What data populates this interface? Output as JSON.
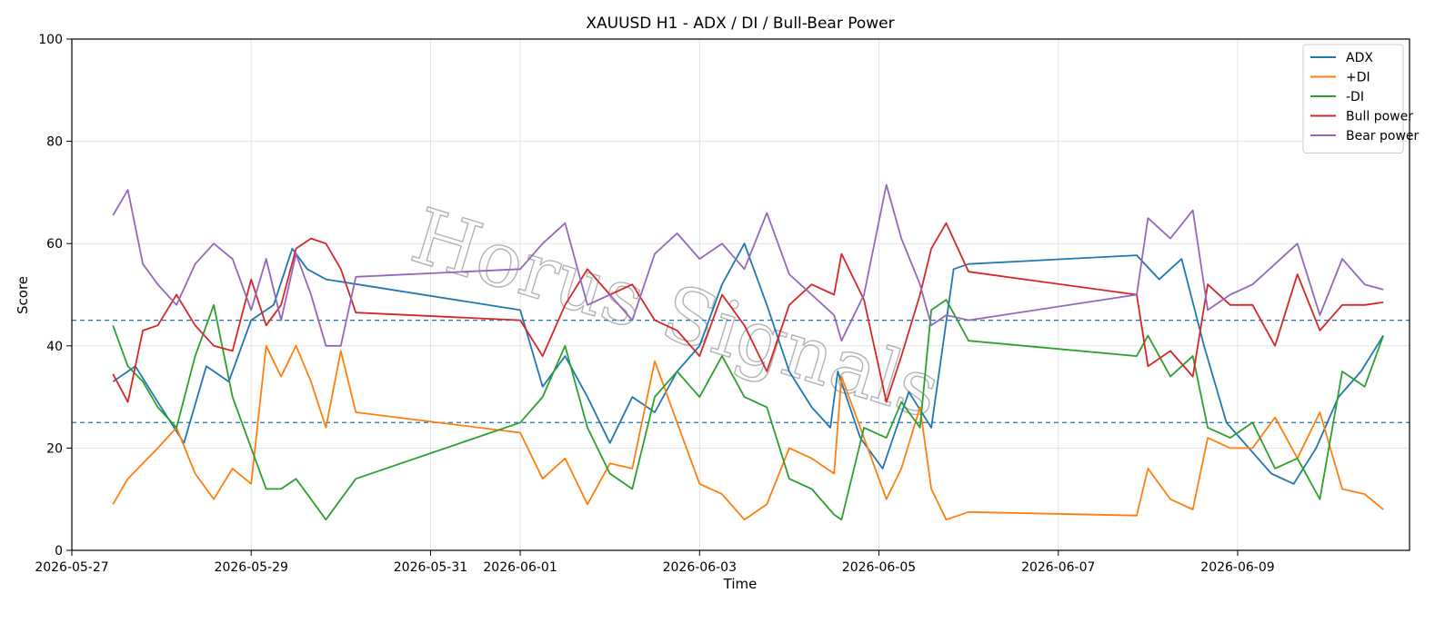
{
  "chart_data": {
    "type": "line",
    "title": "XAUUSD H1 - ADX / DI / Bull-Bear Power",
    "xlabel": "Time",
    "ylabel": "Score",
    "ylim": [
      0,
      100
    ],
    "yticks": [
      0,
      20,
      40,
      60,
      80,
      100
    ],
    "xlim": [
      "2026-05-27T00:00",
      "2026-06-10T22:00"
    ],
    "xticks": [
      "2026-05-27",
      "2026-05-29",
      "2026-05-31",
      "2026-06-01",
      "2026-06-03",
      "2026-06-05",
      "2026-06-07",
      "2026-06-09"
    ],
    "grid": true,
    "legend_position": "top-right",
    "reference_lines": [
      {
        "y": 45,
        "color": "#1f77b4",
        "style": "dashed"
      },
      {
        "y": 25,
        "color": "#1f77b4",
        "style": "dashed"
      }
    ],
    "watermark": "Horus Signals",
    "series": [
      {
        "name": "ADX",
        "color": "#1f77b4",
        "points": [
          [
            "2026-05-27T11:00",
            33
          ],
          [
            "2026-05-27T17:00",
            36
          ],
          [
            "2026-05-27T23:00",
            29
          ],
          [
            "2026-05-28T06:00",
            21
          ],
          [
            "2026-05-28T12:00",
            36
          ],
          [
            "2026-05-28T18:00",
            33
          ],
          [
            "2026-05-29T00:00",
            45
          ],
          [
            "2026-05-29T06:00",
            48
          ],
          [
            "2026-05-29T11:00",
            59
          ],
          [
            "2026-05-29T15:00",
            55
          ],
          [
            "2026-05-29T20:00",
            53
          ],
          [
            "2026-06-01T00:00",
            47
          ],
          [
            "2026-06-01T06:00",
            32
          ],
          [
            "2026-06-01T12:00",
            38
          ],
          [
            "2026-06-01T18:00",
            30
          ],
          [
            "2026-06-02T00:00",
            21
          ],
          [
            "2026-06-02T06:00",
            30
          ],
          [
            "2026-06-02T12:00",
            27
          ],
          [
            "2026-06-02T18:00",
            35
          ],
          [
            "2026-06-03T00:00",
            40
          ],
          [
            "2026-06-03T06:00",
            52
          ],
          [
            "2026-06-03T12:00",
            60
          ],
          [
            "2026-06-03T18:00",
            48
          ],
          [
            "2026-06-04T00:00",
            35
          ],
          [
            "2026-06-04T06:00",
            28
          ],
          [
            "2026-06-04T11:00",
            24
          ],
          [
            "2026-06-04T13:00",
            35
          ],
          [
            "2026-06-04T19:00",
            22
          ],
          [
            "2026-06-05T01:00",
            16
          ],
          [
            "2026-06-05T08:00",
            31
          ],
          [
            "2026-06-05T14:00",
            24
          ],
          [
            "2026-06-05T20:00",
            55
          ],
          [
            "2026-06-06T00:00",
            56
          ],
          [
            "2026-06-07T21:00",
            57.7
          ],
          [
            "2026-06-08T03:00",
            53
          ],
          [
            "2026-06-08T09:00",
            57
          ],
          [
            "2026-06-08T15:00",
            40
          ],
          [
            "2026-06-08T21:00",
            25
          ],
          [
            "2026-06-09T03:00",
            20
          ],
          [
            "2026-06-09T09:00",
            15
          ],
          [
            "2026-06-09T15:00",
            13
          ],
          [
            "2026-06-09T21:00",
            20
          ],
          [
            "2026-06-10T03:00",
            30
          ],
          [
            "2026-06-10T09:00",
            35
          ],
          [
            "2026-06-10T15:00",
            42
          ]
        ]
      },
      {
        "name": "+DI",
        "color": "#ff7f0e",
        "points": [
          [
            "2026-05-27T11:00",
            9
          ],
          [
            "2026-05-27T15:00",
            14
          ],
          [
            "2026-05-27T19:00",
            17
          ],
          [
            "2026-05-27T23:00",
            20
          ],
          [
            "2026-05-28T04:00",
            24
          ],
          [
            "2026-05-28T09:00",
            15
          ],
          [
            "2026-05-28T14:00",
            10
          ],
          [
            "2026-05-28T19:00",
            16
          ],
          [
            "2026-05-29T00:00",
            13
          ],
          [
            "2026-05-29T04:00",
            40
          ],
          [
            "2026-05-29T08:00",
            34
          ],
          [
            "2026-05-29T12:00",
            40
          ],
          [
            "2026-05-29T16:00",
            33
          ],
          [
            "2026-05-29T20:00",
            24
          ],
          [
            "2026-05-30T00:00",
            39
          ],
          [
            "2026-05-30T04:00",
            27
          ],
          [
            "2026-06-01T00:00",
            23
          ],
          [
            "2026-06-01T06:00",
            14
          ],
          [
            "2026-06-01T12:00",
            18
          ],
          [
            "2026-06-01T18:00",
            9
          ],
          [
            "2026-06-02T00:00",
            17
          ],
          [
            "2026-06-02T06:00",
            16
          ],
          [
            "2026-06-02T12:00",
            37
          ],
          [
            "2026-06-02T18:00",
            25
          ],
          [
            "2026-06-03T00:00",
            13
          ],
          [
            "2026-06-03T06:00",
            11
          ],
          [
            "2026-06-03T12:00",
            6
          ],
          [
            "2026-06-03T18:00",
            9
          ],
          [
            "2026-06-04T00:00",
            20
          ],
          [
            "2026-06-04T06:00",
            18
          ],
          [
            "2026-06-04T12:00",
            15
          ],
          [
            "2026-06-04T14:00",
            34
          ],
          [
            "2026-06-04T20:00",
            22
          ],
          [
            "2026-06-05T02:00",
            10
          ],
          [
            "2026-06-05T06:00",
            16
          ],
          [
            "2026-06-05T11:00",
            28
          ],
          [
            "2026-06-05T14:00",
            12
          ],
          [
            "2026-06-05T18:00",
            6
          ],
          [
            "2026-06-06T00:00",
            7.5
          ],
          [
            "2026-06-07T21:00",
            6.8
          ],
          [
            "2026-06-08T00:00",
            16
          ],
          [
            "2026-06-08T06:00",
            10
          ],
          [
            "2026-06-08T12:00",
            8
          ],
          [
            "2026-06-08T16:00",
            22
          ],
          [
            "2026-06-08T22:00",
            20
          ],
          [
            "2026-06-09T04:00",
            20
          ],
          [
            "2026-06-09T10:00",
            26
          ],
          [
            "2026-06-09T16:00",
            18
          ],
          [
            "2026-06-09T22:00",
            27
          ],
          [
            "2026-06-10T04:00",
            12
          ],
          [
            "2026-06-10T10:00",
            11
          ],
          [
            "2026-06-10T15:00",
            8
          ]
        ]
      },
      {
        "name": "-DI",
        "color": "#2ca02c",
        "points": [
          [
            "2026-05-27T11:00",
            44
          ],
          [
            "2026-05-27T15:00",
            36
          ],
          [
            "2026-05-27T19:00",
            33
          ],
          [
            "2026-05-27T23:00",
            28
          ],
          [
            "2026-05-28T04:00",
            24
          ],
          [
            "2026-05-28T09:00",
            38
          ],
          [
            "2026-05-28T14:00",
            48
          ],
          [
            "2026-05-28T19:00",
            30
          ],
          [
            "2026-05-29T00:00",
            20
          ],
          [
            "2026-05-29T04:00",
            12
          ],
          [
            "2026-05-29T08:00",
            12
          ],
          [
            "2026-05-29T12:00",
            14
          ],
          [
            "2026-05-29T16:00",
            10
          ],
          [
            "2026-05-29T20:00",
            6
          ],
          [
            "2026-05-30T00:00",
            10
          ],
          [
            "2026-05-30T04:00",
            14
          ],
          [
            "2026-06-01T00:00",
            25
          ],
          [
            "2026-06-01T06:00",
            30
          ],
          [
            "2026-06-01T12:00",
            40
          ],
          [
            "2026-06-01T18:00",
            24
          ],
          [
            "2026-06-02T00:00",
            15
          ],
          [
            "2026-06-02T06:00",
            12
          ],
          [
            "2026-06-02T12:00",
            30
          ],
          [
            "2026-06-02T18:00",
            35
          ],
          [
            "2026-06-03T00:00",
            30
          ],
          [
            "2026-06-03T06:00",
            38
          ],
          [
            "2026-06-03T12:00",
            30
          ],
          [
            "2026-06-03T18:00",
            28
          ],
          [
            "2026-06-04T00:00",
            14
          ],
          [
            "2026-06-04T06:00",
            12
          ],
          [
            "2026-06-04T12:00",
            7
          ],
          [
            "2026-06-04T14:00",
            6
          ],
          [
            "2026-06-04T20:00",
            24
          ],
          [
            "2026-06-05T02:00",
            22
          ],
          [
            "2026-06-05T06:00",
            29
          ],
          [
            "2026-06-05T11:00",
            24
          ],
          [
            "2026-06-05T14:00",
            47
          ],
          [
            "2026-06-05T18:00",
            49
          ],
          [
            "2026-06-06T00:00",
            41
          ],
          [
            "2026-06-07T21:00",
            38
          ],
          [
            "2026-06-08T00:00",
            42
          ],
          [
            "2026-06-08T06:00",
            34
          ],
          [
            "2026-06-08T12:00",
            38
          ],
          [
            "2026-06-08T16:00",
            24
          ],
          [
            "2026-06-08T22:00",
            22
          ],
          [
            "2026-06-09T04:00",
            25
          ],
          [
            "2026-06-09T10:00",
            16
          ],
          [
            "2026-06-09T16:00",
            18
          ],
          [
            "2026-06-09T22:00",
            10
          ],
          [
            "2026-06-10T04:00",
            35
          ],
          [
            "2026-06-10T10:00",
            32
          ],
          [
            "2026-06-10T15:00",
            42
          ]
        ]
      },
      {
        "name": "Bull power",
        "color": "#d62728",
        "points": [
          [
            "2026-05-27T11:00",
            34.5
          ],
          [
            "2026-05-27T15:00",
            29
          ],
          [
            "2026-05-27T19:00",
            43
          ],
          [
            "2026-05-27T23:00",
            44
          ],
          [
            "2026-05-28T04:00",
            50
          ],
          [
            "2026-05-28T09:00",
            44
          ],
          [
            "2026-05-28T14:00",
            40
          ],
          [
            "2026-05-28T19:00",
            39
          ],
          [
            "2026-05-29T00:00",
            53
          ],
          [
            "2026-05-29T04:00",
            44
          ],
          [
            "2026-05-29T08:00",
            48
          ],
          [
            "2026-05-29T12:00",
            59
          ],
          [
            "2026-05-29T16:00",
            61
          ],
          [
            "2026-05-29T20:00",
            60
          ],
          [
            "2026-05-30T00:00",
            55
          ],
          [
            "2026-05-30T04:00",
            46.5
          ],
          [
            "2026-06-01T00:00",
            45
          ],
          [
            "2026-06-01T06:00",
            38
          ],
          [
            "2026-06-01T12:00",
            48
          ],
          [
            "2026-06-01T18:00",
            55
          ],
          [
            "2026-06-02T00:00",
            50
          ],
          [
            "2026-06-02T06:00",
            52
          ],
          [
            "2026-06-02T12:00",
            45
          ],
          [
            "2026-06-02T18:00",
            43
          ],
          [
            "2026-06-03T00:00",
            38
          ],
          [
            "2026-06-03T06:00",
            50
          ],
          [
            "2026-06-03T12:00",
            44
          ],
          [
            "2026-06-03T18:00",
            35
          ],
          [
            "2026-06-04T00:00",
            48
          ],
          [
            "2026-06-04T06:00",
            52
          ],
          [
            "2026-06-04T12:00",
            50
          ],
          [
            "2026-06-04T14:00",
            58
          ],
          [
            "2026-06-04T20:00",
            49
          ],
          [
            "2026-06-05T02:00",
            29
          ],
          [
            "2026-06-05T06:00",
            38
          ],
          [
            "2026-06-05T11:00",
            50
          ],
          [
            "2026-06-05T14:00",
            59
          ],
          [
            "2026-06-05T18:00",
            64
          ],
          [
            "2026-06-06T00:00",
            54.5
          ],
          [
            "2026-06-07T21:00",
            50
          ],
          [
            "2026-06-08T00:00",
            36
          ],
          [
            "2026-06-08T06:00",
            39
          ],
          [
            "2026-06-08T12:00",
            34
          ],
          [
            "2026-06-08T16:00",
            52
          ],
          [
            "2026-06-08T22:00",
            48
          ],
          [
            "2026-06-09T04:00",
            48
          ],
          [
            "2026-06-09T10:00",
            40
          ],
          [
            "2026-06-09T16:00",
            54
          ],
          [
            "2026-06-09T22:00",
            43
          ],
          [
            "2026-06-10T04:00",
            48
          ],
          [
            "2026-06-10T10:00",
            48
          ],
          [
            "2026-06-10T15:00",
            48.5
          ]
        ]
      },
      {
        "name": "Bear power",
        "color": "#9467bd",
        "points": [
          [
            "2026-05-27T11:00",
            65.5
          ],
          [
            "2026-05-27T15:00",
            70.5
          ],
          [
            "2026-05-27T19:00",
            56
          ],
          [
            "2026-05-27T23:00",
            52
          ],
          [
            "2026-05-28T04:00",
            48
          ],
          [
            "2026-05-28T09:00",
            56
          ],
          [
            "2026-05-28T14:00",
            60
          ],
          [
            "2026-05-28T19:00",
            57
          ],
          [
            "2026-05-29T00:00",
            47
          ],
          [
            "2026-05-29T04:00",
            57
          ],
          [
            "2026-05-29T08:00",
            45
          ],
          [
            "2026-05-29T12:00",
            58
          ],
          [
            "2026-05-29T16:00",
            50
          ],
          [
            "2026-05-29T20:00",
            40
          ],
          [
            "2026-05-30T00:00",
            40
          ],
          [
            "2026-05-30T04:00",
            53.5
          ],
          [
            "2026-06-01T00:00",
            55
          ],
          [
            "2026-06-01T06:00",
            60
          ],
          [
            "2026-06-01T12:00",
            64
          ],
          [
            "2026-06-01T18:00",
            48
          ],
          [
            "2026-06-02T00:00",
            50
          ],
          [
            "2026-06-02T06:00",
            45
          ],
          [
            "2026-06-02T12:00",
            58
          ],
          [
            "2026-06-02T18:00",
            62
          ],
          [
            "2026-06-03T00:00",
            57
          ],
          [
            "2026-06-03T06:00",
            60
          ],
          [
            "2026-06-03T12:00",
            55
          ],
          [
            "2026-06-03T18:00",
            66
          ],
          [
            "2026-06-04T00:00",
            54
          ],
          [
            "2026-06-04T06:00",
            50
          ],
          [
            "2026-06-04T12:00",
            46
          ],
          [
            "2026-06-04T14:00",
            41
          ],
          [
            "2026-06-04T20:00",
            50
          ],
          [
            "2026-06-05T02:00",
            71.5
          ],
          [
            "2026-06-05T06:00",
            61
          ],
          [
            "2026-06-05T11:00",
            52
          ],
          [
            "2026-06-05T14:00",
            44
          ],
          [
            "2026-06-05T18:00",
            46
          ],
          [
            "2026-06-06T00:00",
            45
          ],
          [
            "2026-06-07T21:00",
            50
          ],
          [
            "2026-06-08T00:00",
            65
          ],
          [
            "2026-06-08T06:00",
            61
          ],
          [
            "2026-06-08T12:00",
            66.5
          ],
          [
            "2026-06-08T16:00",
            47
          ],
          [
            "2026-06-08T22:00",
            50
          ],
          [
            "2026-06-09T04:00",
            52
          ],
          [
            "2026-06-09T10:00",
            56
          ],
          [
            "2026-06-09T16:00",
            60
          ],
          [
            "2026-06-09T22:00",
            46
          ],
          [
            "2026-06-10T04:00",
            57
          ],
          [
            "2026-06-10T10:00",
            52
          ],
          [
            "2026-06-10T15:00",
            51
          ]
        ]
      }
    ]
  }
}
